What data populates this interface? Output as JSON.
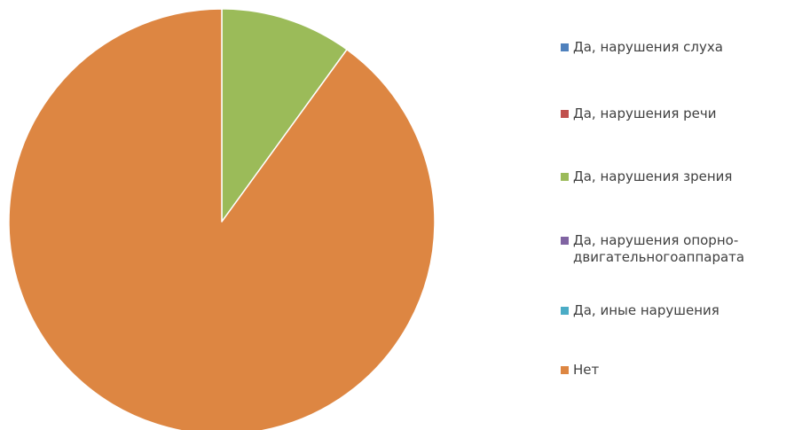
{
  "chart_data": {
    "type": "pie",
    "title": "",
    "slices": [
      {
        "label": "Да, нарушения слуха",
        "value": 0,
        "color": "#4F81BD"
      },
      {
        "label": "Да, нарушения речи",
        "value": 0,
        "color": "#C0504D"
      },
      {
        "label": "Да, нарушения зрения",
        "value": 10,
        "color": "#9BBB59"
      },
      {
        "label": "Да, нарушения опорно-\nдвигательногоаппарата",
        "value": 0,
        "color": "#8064A2"
      },
      {
        "label": "Да, иные нарушения",
        "value": 0,
        "color": "#4BACC6"
      },
      {
        "label": "Нет",
        "value": 90,
        "color": "#DD8642"
      }
    ],
    "legend_position": "right",
    "start_angle": "top",
    "direction": "clockwise"
  }
}
